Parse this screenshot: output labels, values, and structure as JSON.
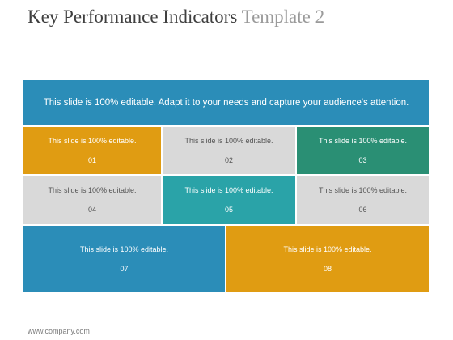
{
  "title": {
    "main": "Key Performance Indicators",
    "sub": "Template 2"
  },
  "banner": {
    "text": "This slide is 100% editable. Adapt it to your needs and capture your audience's attention.",
    "color": "#2b8db8"
  },
  "tiles": [
    {
      "text": "This slide is 100% editable.",
      "number": "01",
      "color": "#e09c12",
      "text_color": "#ffffff"
    },
    {
      "text": "This slide is 100% editable.",
      "number": "02",
      "color": "#d9d9d9",
      "text_color": "#555555"
    },
    {
      "text": "This slide is 100% editable.",
      "number": "03",
      "color": "#2a8f74",
      "text_color": "#ffffff"
    },
    {
      "text": "This slide is 100% editable.",
      "number": "04",
      "color": "#d9d9d9",
      "text_color": "#555555"
    },
    {
      "text": "This slide is 100% editable.",
      "number": "05",
      "color": "#2aa3a8",
      "text_color": "#ffffff"
    },
    {
      "text": "This slide is 100% editable.",
      "number": "06",
      "color": "#d9d9d9",
      "text_color": "#555555"
    },
    {
      "text": "This slide is 100% editable.",
      "number": "07",
      "color": "#2b8db8",
      "text_color": "#ffffff"
    },
    {
      "text": "This slide is 100% editable.",
      "number": "08",
      "color": "#e09c12",
      "text_color": "#ffffff"
    }
  ],
  "footer": {
    "text": "www.company.com"
  }
}
